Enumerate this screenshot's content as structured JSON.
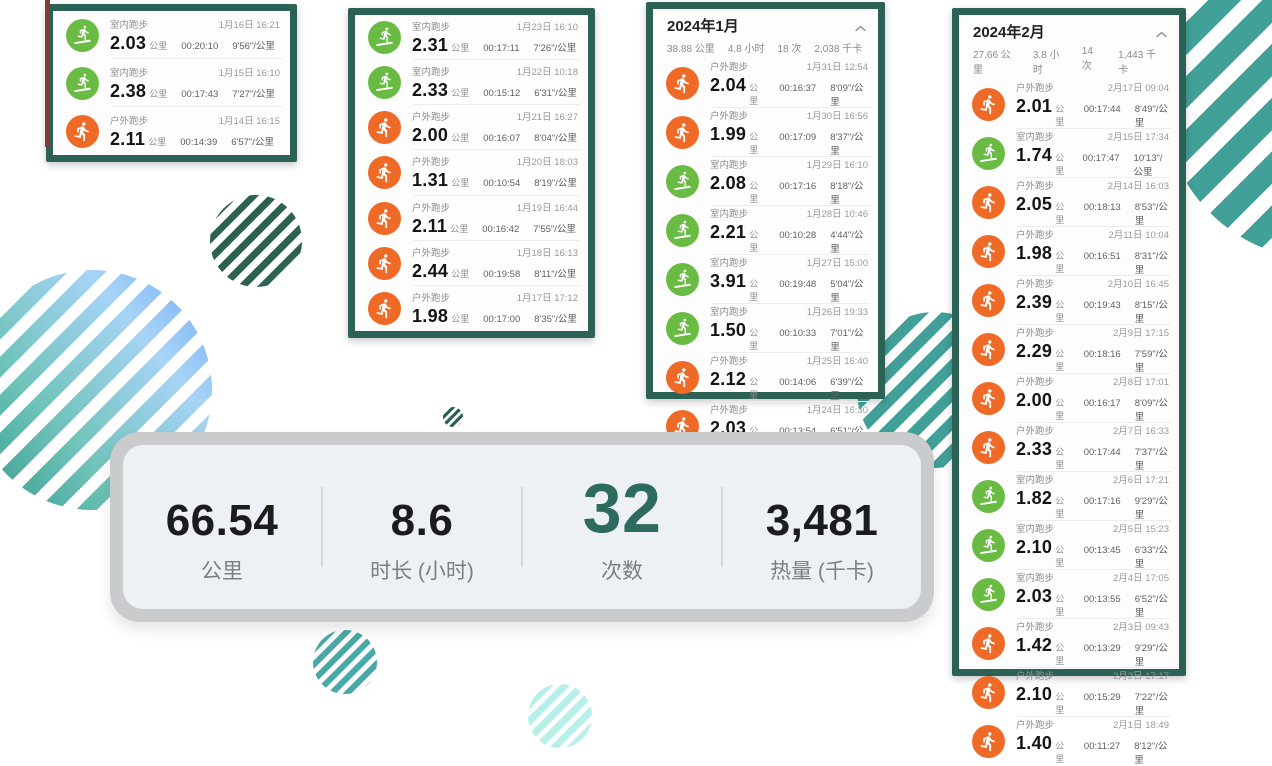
{
  "colors": {
    "panel_border": "#2c6156",
    "indoor_icon_green": "#6abb43",
    "outdoor_icon_orange": "#ee6a26",
    "highlight_teal": "#2c6b5e",
    "stripe_teal": "#41a098",
    "stripe_dark_green": "#2d6152"
  },
  "summary": {
    "items": [
      {
        "value": "66.54",
        "label": "公里"
      },
      {
        "value": "8.6",
        "label": "时长 (小时)"
      },
      {
        "value": "32",
        "label": "次数"
      },
      {
        "value": "3,481",
        "label": "热量 (千卡)"
      }
    ]
  },
  "panels": [
    {
      "header": null,
      "entries": [
        {
          "icon": "treadmill",
          "type": "室内跑步",
          "distance": "2.03",
          "distance_unit": "公里",
          "duration": "00:20:10",
          "pace": "9'56\"/公里",
          "datetime": "1月16日 16:21"
        },
        {
          "icon": "treadmill",
          "type": "室内跑步",
          "distance": "2.38",
          "distance_unit": "公里",
          "duration": "00:17:43",
          "pace": "7'27\"/公里",
          "datetime": "1月15日 16:10"
        },
        {
          "icon": "runner",
          "type": "户外跑步",
          "distance": "2.11",
          "distance_unit": "公里",
          "duration": "00:14:39",
          "pace": "6'57\"/公里",
          "datetime": "1月14日 16:15"
        }
      ]
    },
    {
      "header": null,
      "entries": [
        {
          "icon": "treadmill",
          "type": "室内跑步",
          "distance": "2.31",
          "distance_unit": "公里",
          "duration": "00:17:11",
          "pace": "7'26\"/公里",
          "datetime": "1月23日 16:10"
        },
        {
          "icon": "treadmill",
          "type": "室内跑步",
          "distance": "2.33",
          "distance_unit": "公里",
          "duration": "00:15:12",
          "pace": "6'31\"/公里",
          "datetime": "1月22日 10:18"
        },
        {
          "icon": "runner",
          "type": "户外跑步",
          "distance": "2.00",
          "distance_unit": "公里",
          "duration": "00:16:07",
          "pace": "8'04\"/公里",
          "datetime": "1月21日 16:27"
        },
        {
          "icon": "runner",
          "type": "户外跑步",
          "distance": "1.31",
          "distance_unit": "公里",
          "duration": "00:10:54",
          "pace": "8'19\"/公里",
          "datetime": "1月20日 18:03"
        },
        {
          "icon": "runner",
          "type": "户外跑步",
          "distance": "2.11",
          "distance_unit": "公里",
          "duration": "00:16:42",
          "pace": "7'55\"/公里",
          "datetime": "1月19日 16:44"
        },
        {
          "icon": "runner",
          "type": "户外跑步",
          "distance": "2.44",
          "distance_unit": "公里",
          "duration": "00:19:58",
          "pace": "8'11\"/公里",
          "datetime": "1月18日 16:13"
        },
        {
          "icon": "runner",
          "type": "户外跑步",
          "distance": "1.98",
          "distance_unit": "公里",
          "duration": "00:17:00",
          "pace": "8'35\"/公里",
          "datetime": "1月17日 17:12"
        }
      ]
    },
    {
      "header": {
        "title": "2024年1月",
        "distance": "38.88 公里",
        "duration": "4.8 小时",
        "count": "18 次",
        "calories": "2,038 千卡"
      },
      "entries": [
        {
          "icon": "runner",
          "type": "户外跑步",
          "distance": "2.04",
          "distance_unit": "公里",
          "duration": "00:16:37",
          "pace": "8'09\"/公里",
          "datetime": "1月31日 12:54"
        },
        {
          "icon": "runner",
          "type": "户外跑步",
          "distance": "1.99",
          "distance_unit": "公里",
          "duration": "00:17:09",
          "pace": "8'37\"/公里",
          "datetime": "1月30日 16:56"
        },
        {
          "icon": "treadmill",
          "type": "室内跑步",
          "distance": "2.08",
          "distance_unit": "公里",
          "duration": "00:17:16",
          "pace": "8'18\"/公里",
          "datetime": "1月29日 16:10"
        },
        {
          "icon": "treadmill",
          "type": "室内跑步",
          "distance": "2.21",
          "distance_unit": "公里",
          "duration": "00:10:28",
          "pace": "4'44\"/公里",
          "datetime": "1月28日 10:46"
        },
        {
          "icon": "treadmill",
          "type": "室内跑步",
          "distance": "3.91",
          "distance_unit": "公里",
          "duration": "00:19:48",
          "pace": "5'04\"/公里",
          "datetime": "1月27日 15:00"
        },
        {
          "icon": "treadmill",
          "type": "室内跑步",
          "distance": "1.50",
          "distance_unit": "公里",
          "duration": "00:10:33",
          "pace": "7'01\"/公里",
          "datetime": "1月26日 19:33"
        },
        {
          "icon": "runner",
          "type": "户外跑步",
          "distance": "2.12",
          "distance_unit": "公里",
          "duration": "00:14:06",
          "pace": "6'39\"/公里",
          "datetime": "1月25日 16:40"
        },
        {
          "icon": "runner",
          "type": "户外跑步",
          "distance": "2.03",
          "distance_unit": "公里",
          "duration": "00:13:54",
          "pace": "6'51\"/公里",
          "datetime": "1月24日 16:30"
        }
      ]
    },
    {
      "header": {
        "title": "2024年2月",
        "distance": "27.66 公里",
        "duration": "3.8 小时",
        "count": "14 次",
        "calories": "1,443 千卡"
      },
      "entries": [
        {
          "icon": "runner",
          "type": "户外跑步",
          "distance": "2.01",
          "distance_unit": "公里",
          "duration": "00:17:44",
          "pace": "8'49\"/公里",
          "datetime": "2月17日 09:04"
        },
        {
          "icon": "treadmill",
          "type": "室内跑步",
          "distance": "1.74",
          "distance_unit": "公里",
          "duration": "00:17:47",
          "pace": "10'13\"/公里",
          "datetime": "2月15日 17:34"
        },
        {
          "icon": "runner",
          "type": "户外跑步",
          "distance": "2.05",
          "distance_unit": "公里",
          "duration": "00:18:13",
          "pace": "8'53\"/公里",
          "datetime": "2月14日 16:03"
        },
        {
          "icon": "runner",
          "type": "户外跑步",
          "distance": "1.98",
          "distance_unit": "公里",
          "duration": "00:16:51",
          "pace": "8'31\"/公里",
          "datetime": "2月11日 10:04"
        },
        {
          "icon": "runner",
          "type": "户外跑步",
          "distance": "2.39",
          "distance_unit": "公里",
          "duration": "00:19:43",
          "pace": "8'15\"/公里",
          "datetime": "2月10日 16:45"
        },
        {
          "icon": "runner",
          "type": "户外跑步",
          "distance": "2.29",
          "distance_unit": "公里",
          "duration": "00:18:16",
          "pace": "7'59\"/公里",
          "datetime": "2月9日 17:15"
        },
        {
          "icon": "runner",
          "type": "户外跑步",
          "distance": "2.00",
          "distance_unit": "公里",
          "duration": "00:16:17",
          "pace": "8'09\"/公里",
          "datetime": "2月8日 17:01"
        },
        {
          "icon": "runner",
          "type": "户外跑步",
          "distance": "2.33",
          "distance_unit": "公里",
          "duration": "00:17:44",
          "pace": "7'37\"/公里",
          "datetime": "2月7日 16:33"
        },
        {
          "icon": "treadmill",
          "type": "室内跑步",
          "distance": "1.82",
          "distance_unit": "公里",
          "duration": "00:17:16",
          "pace": "9'29\"/公里",
          "datetime": "2月6日 17:21"
        },
        {
          "icon": "treadmill",
          "type": "室内跑步",
          "distance": "2.10",
          "distance_unit": "公里",
          "duration": "00:13:45",
          "pace": "6'33\"/公里",
          "datetime": "2月5日 15:23"
        },
        {
          "icon": "treadmill",
          "type": "室内跑步",
          "distance": "2.03",
          "distance_unit": "公里",
          "duration": "00:13:55",
          "pace": "6'52\"/公里",
          "datetime": "2月4日 17:05"
        },
        {
          "icon": "runner",
          "type": "户外跑步",
          "distance": "1.42",
          "distance_unit": "公里",
          "duration": "00:13:29",
          "pace": "9'29\"/公里",
          "datetime": "2月3日 09:43"
        },
        {
          "icon": "runner",
          "type": "户外跑步",
          "distance": "2.10",
          "distance_unit": "公里",
          "duration": "00:15:29",
          "pace": "7'22\"/公里",
          "datetime": "2月2日 17:17"
        },
        {
          "icon": "runner",
          "type": "户外跑步",
          "distance": "1.40",
          "distance_unit": "公里",
          "duration": "00:11:27",
          "pace": "8'12\"/公里",
          "datetime": "2月1日 18:49"
        }
      ]
    }
  ]
}
